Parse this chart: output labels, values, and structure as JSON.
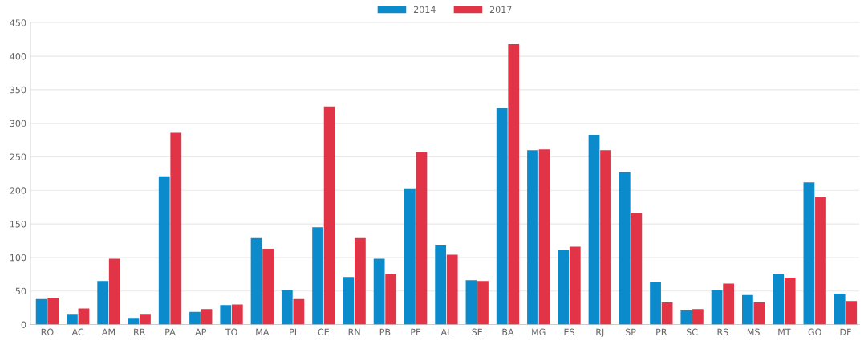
{
  "chart_data": {
    "type": "bar",
    "categories": [
      "RO",
      "AC",
      "AM",
      "RR",
      "PA",
      "AP",
      "TO",
      "MA",
      "PI",
      "CE",
      "RN",
      "PB",
      "PE",
      "AL",
      "SE",
      "BA",
      "MG",
      "ES",
      "RJ",
      "SP",
      "PR",
      "SC",
      "RS",
      "MS",
      "MT",
      "GO",
      "DF"
    ],
    "series": [
      {
        "name": "2014",
        "color": "#0b8bcb",
        "values": [
          38,
          16,
          65,
          10,
          221,
          19,
          29,
          129,
          51,
          145,
          71,
          98,
          203,
          119,
          66,
          323,
          260,
          111,
          283,
          227,
          63,
          21,
          51,
          44,
          76,
          212,
          46
        ]
      },
      {
        "name": "2017",
        "color": "#e13446",
        "values": [
          40,
          24,
          98,
          16,
          286,
          23,
          30,
          113,
          38,
          325,
          129,
          76,
          257,
          104,
          65,
          418,
          261,
          116,
          260,
          166,
          33,
          23,
          61,
          33,
          70,
          190,
          35
        ]
      }
    ],
    "ylim": [
      0,
      450
    ],
    "yticks": [
      0,
      50,
      100,
      150,
      200,
      250,
      300,
      350,
      400,
      450
    ],
    "grid": true,
    "legend": "top"
  }
}
